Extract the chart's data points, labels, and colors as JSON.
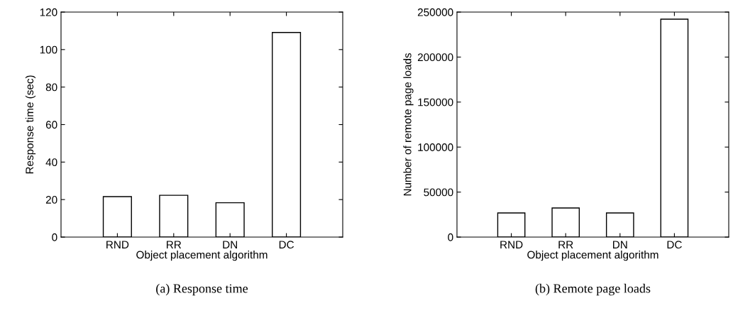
{
  "chart_data": [
    {
      "type": "bar",
      "xlabel": "Object placement algorithm",
      "ylabel": "Response time (sec)",
      "categories": [
        "RND",
        "RR",
        "DN",
        "DC"
      ],
      "values": [
        21.6,
        22.3,
        18.3,
        109.1
      ],
      "color": "#ffffff",
      "ylim": [
        0,
        120
      ],
      "yticks": [
        0,
        20,
        40,
        60,
        80,
        100,
        120
      ],
      "grid": false,
      "legend": false,
      "annotations": [
        "(a) Response time"
      ]
    },
    {
      "type": "bar",
      "xlabel": "Object placement algorithm",
      "ylabel": "Number of remote page loads",
      "categories": [
        "RND",
        "RR",
        "DN",
        "DC"
      ],
      "values": [
        26800,
        32300,
        26800,
        242100
      ],
      "color": "#ffffff",
      "ylim": [
        0,
        250000
      ],
      "yticks": [
        0,
        50000,
        100000,
        150000,
        200000,
        250000
      ],
      "grid": false,
      "legend": false,
      "annotations": [
        "(b) Remote page loads"
      ]
    }
  ]
}
